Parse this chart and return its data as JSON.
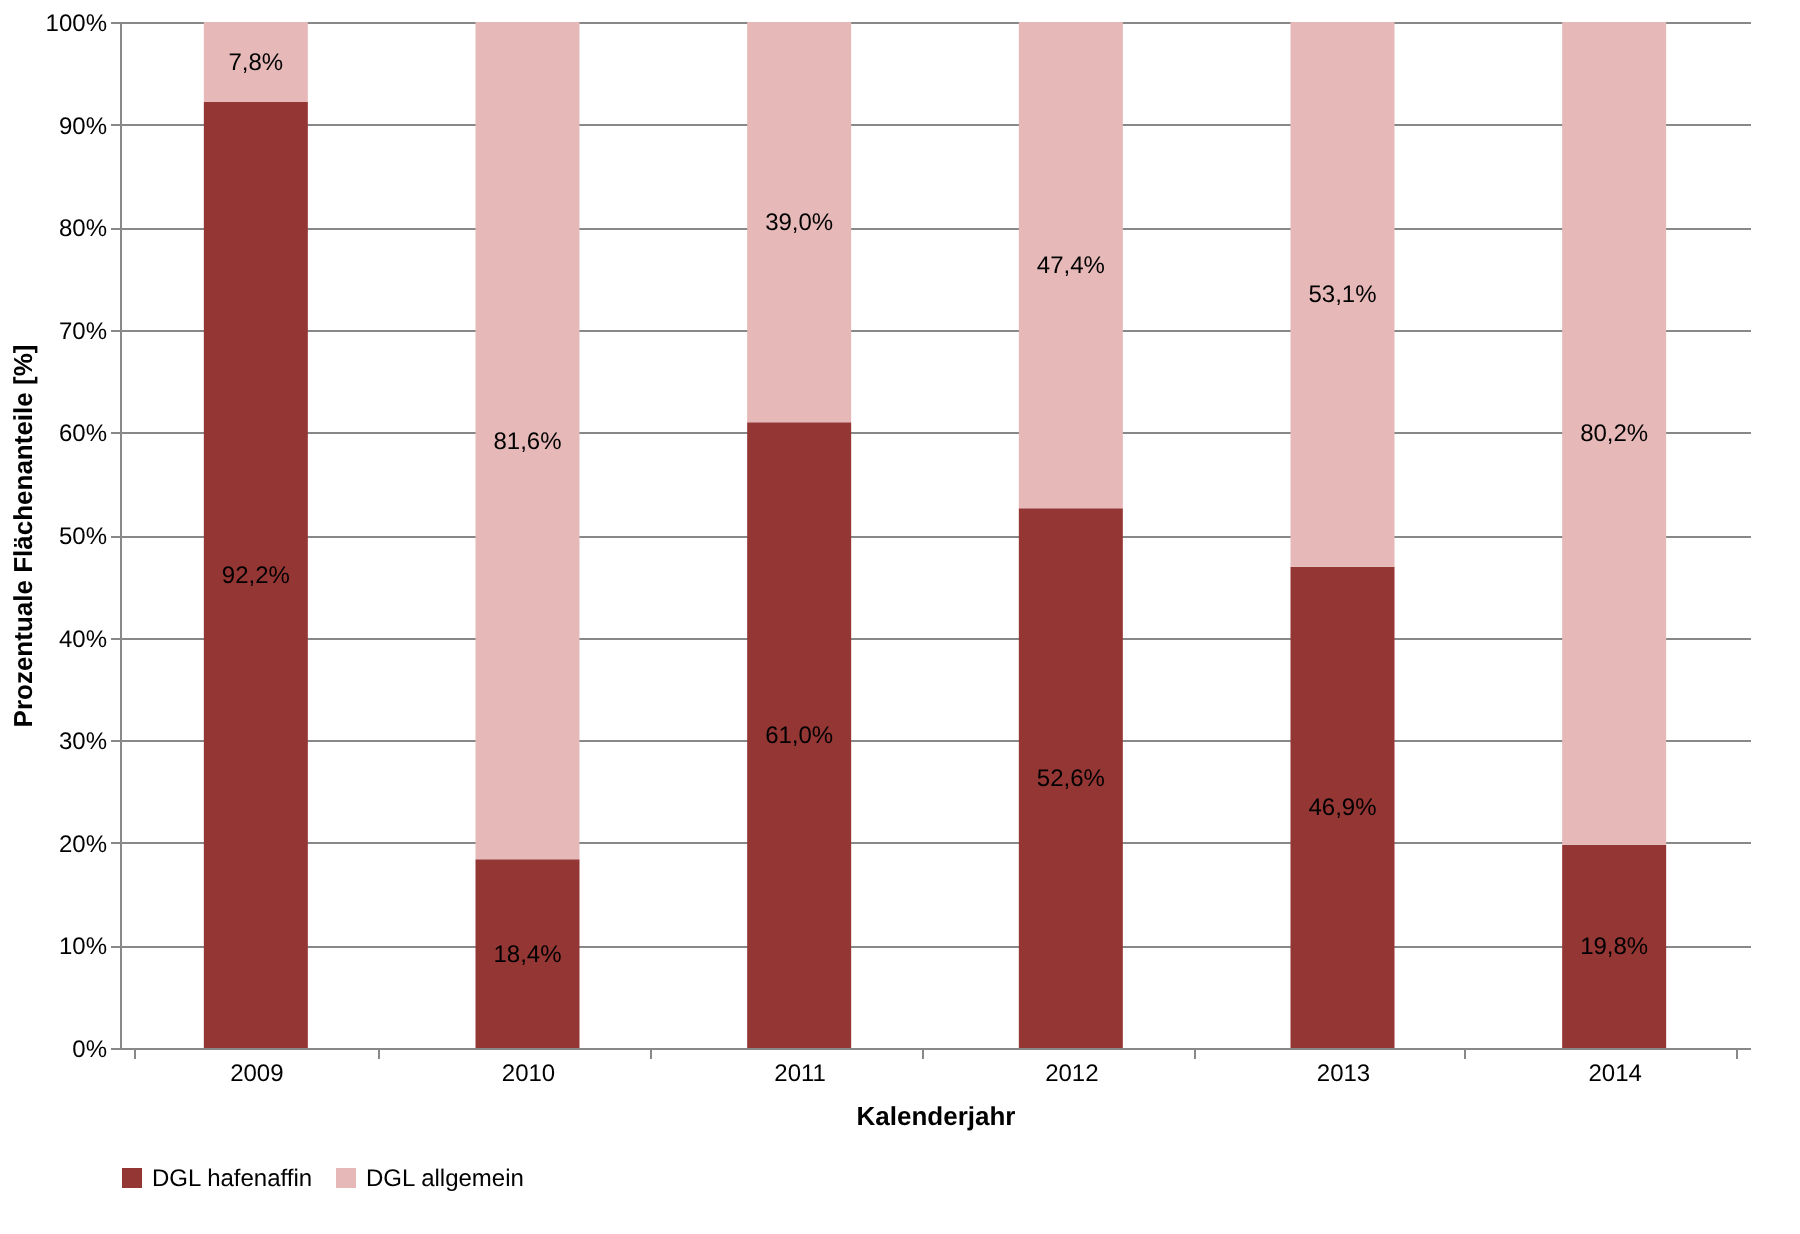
{
  "chart_data": {
    "type": "bar",
    "stacked": true,
    "xlabel": "Kalenderjahr",
    "ylabel": "Prozentuale Flächenanteile [%]",
    "categories": [
      "2009",
      "2010",
      "2011",
      "2012",
      "2013",
      "2014"
    ],
    "series": [
      {
        "name": "DGL hafenaffin",
        "color": "#943634",
        "values": [
          92.2,
          18.4,
          61.0,
          52.6,
          46.9,
          19.8
        ],
        "value_labels": [
          "92,2%",
          "18,4%",
          "61,0%",
          "52,6%",
          "46,9%",
          "19,8%"
        ]
      },
      {
        "name": "DGL allgemein",
        "color": "#e6b9b8",
        "values": [
          7.8,
          81.6,
          39.0,
          47.4,
          53.1,
          80.2
        ],
        "value_labels": [
          "7,8%",
          "81,6%",
          "39,0%",
          "47,4%",
          "53,1%",
          "80,2%"
        ]
      }
    ],
    "ylim": [
      0,
      100
    ],
    "yticks": [
      {
        "value": 0,
        "label": "0%"
      },
      {
        "value": 10,
        "label": "10%"
      },
      {
        "value": 20,
        "label": "20%"
      },
      {
        "value": 30,
        "label": "30%"
      },
      {
        "value": 40,
        "label": "40%"
      },
      {
        "value": 50,
        "label": "50%"
      },
      {
        "value": 60,
        "label": "60%"
      },
      {
        "value": 70,
        "label": "70%"
      },
      {
        "value": 80,
        "label": "80%"
      },
      {
        "value": 90,
        "label": "90%"
      },
      {
        "value": 100,
        "label": "100%"
      }
    ],
    "grid": "y",
    "legend": "bottom"
  }
}
